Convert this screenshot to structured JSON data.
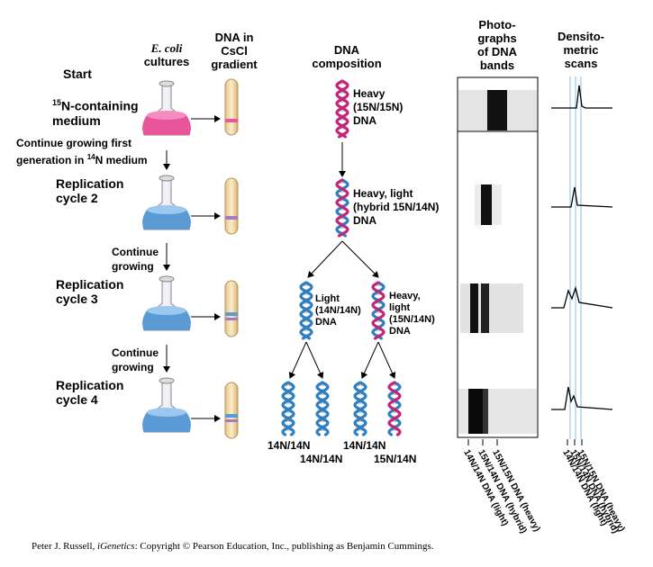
{
  "headers": {
    "ecoli_line1": "E. coli",
    "ecoli_line2": "cultures",
    "cscl_line1": "DNA in",
    "cscl_line2": "CsCl",
    "cscl_line3": "gradient",
    "composition_line1": "DNA",
    "composition_line2": "composition",
    "photo_line1": "Photo-",
    "photo_line2": "graphs",
    "photo_line3": "of DNA",
    "photo_line4": "bands",
    "densito_line1": "Densito-",
    "densito_line2": "metric",
    "densito_line3": "scans"
  },
  "steps": {
    "start": "Start",
    "n15_sup": "15",
    "n15_text": "N-containing",
    "n15_line2": "medium",
    "continue_first_line1": "Continue growing first",
    "continue_first_line2a": "generation in ",
    "continue_first_sup": "14",
    "continue_first_line2b": "N medium",
    "cycle2_line1": "Replication",
    "cycle2_line2": "cycle 2",
    "continue_a_line1": "Continue",
    "continue_a_line2": "growing",
    "cycle3_line1": "Replication",
    "cycle3_line2": "cycle 3",
    "continue_b_line1": "Continue",
    "continue_b_line2": "growing",
    "cycle4_line1": "Replication",
    "cycle4_line2": "cycle 4"
  },
  "dna_labels": {
    "heavy_line1": "Heavy",
    "heavy_line2": "(15N/15N)",
    "heavy_line3": "DNA",
    "hybrid_line1": "Heavy, light",
    "hybrid_line2": "(hybrid 15N/14N)",
    "hybrid_line3": "DNA",
    "light_line1": "Light",
    "light_line2": "(14N/14N)",
    "light_line3": "DNA",
    "heavylight_line1": "Heavy,",
    "heavylight_line2": "light",
    "heavylight_line3": "(15N/14N)",
    "heavylight_line4": "DNA",
    "final1": "14N/14N",
    "final2": "14N/14N",
    "final3": "14N/14N",
    "final4": "15N/14N"
  },
  "axis_labels": {
    "photo_light": "14N/14N DNA (light)",
    "photo_hybrid": "15N/14N DNA (hybrid)",
    "photo_heavy": "15N/15N DNA (heavy)",
    "scan_light": "14N/14N DNA (light)",
    "scan_hybrid": "15N/14N DNA (hybrid)",
    "scan_heavy": "15N/15N DNA (heavy)"
  },
  "credit": {
    "before": "Peter J. Russell, ",
    "italic": "iGenetics",
    "after": ": Copyright © Pearson Education, Inc., publishing as Benjamin Cummings."
  },
  "colors": {
    "heavy_medium": "#e8559a",
    "light_medium": "#5b9bd5",
    "heavy_strand": "#c2257a",
    "light_strand": "#2f7fc1",
    "tube_fill": "#f5d9a3",
    "guide_line": "#9cc9e8"
  }
}
